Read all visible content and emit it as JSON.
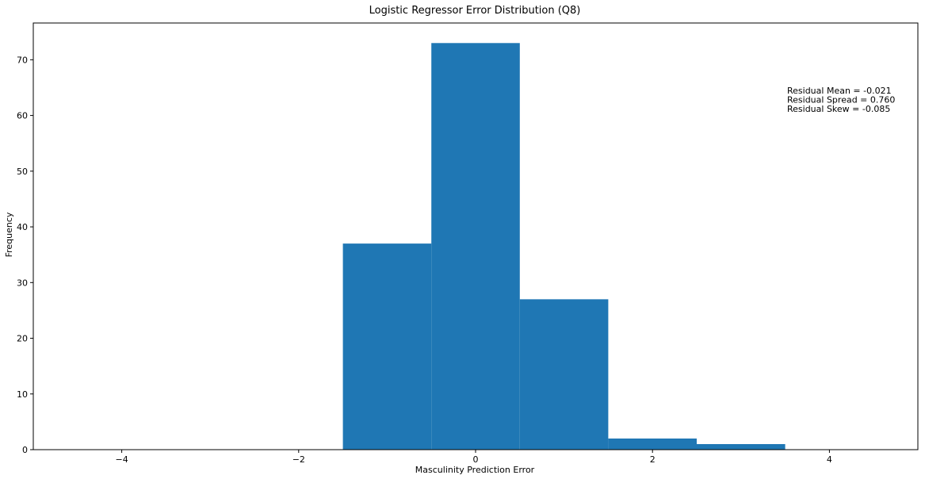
{
  "chart_data": {
    "type": "bar",
    "title": "Logistic Regressor Error Distribution (Q8)",
    "xlabel": "Masculinity Prediction Error",
    "ylabel": "Frequency",
    "xlim": [
      -5.0,
      5.0
    ],
    "ylim": [
      0,
      76.6
    ],
    "xticks": [
      -4,
      -2,
      0,
      2,
      4
    ],
    "xtick_labels": [
      "−4",
      "−2",
      "0",
      "2",
      "4"
    ],
    "yticks": [
      0,
      10,
      20,
      30,
      40,
      50,
      60,
      70
    ],
    "ytick_labels": [
      "0",
      "10",
      "20",
      "30",
      "40",
      "50",
      "60",
      "70"
    ],
    "bins": [
      {
        "x0": -1.5,
        "x1": -0.5,
        "count": 37
      },
      {
        "x0": -0.5,
        "x1": 0.5,
        "count": 73
      },
      {
        "x0": 0.5,
        "x1": 1.5,
        "count": 27
      },
      {
        "x0": 1.5,
        "x1": 2.5,
        "count": 2
      },
      {
        "x0": 2.5,
        "x1": 3.5,
        "count": 1
      }
    ],
    "bar_color": "#1f77b4",
    "grid": false,
    "annotations": [
      "Residual Mean = -0.021",
      "Residual Spread = 0.760",
      "Residual Skew = -0.085"
    ]
  }
}
